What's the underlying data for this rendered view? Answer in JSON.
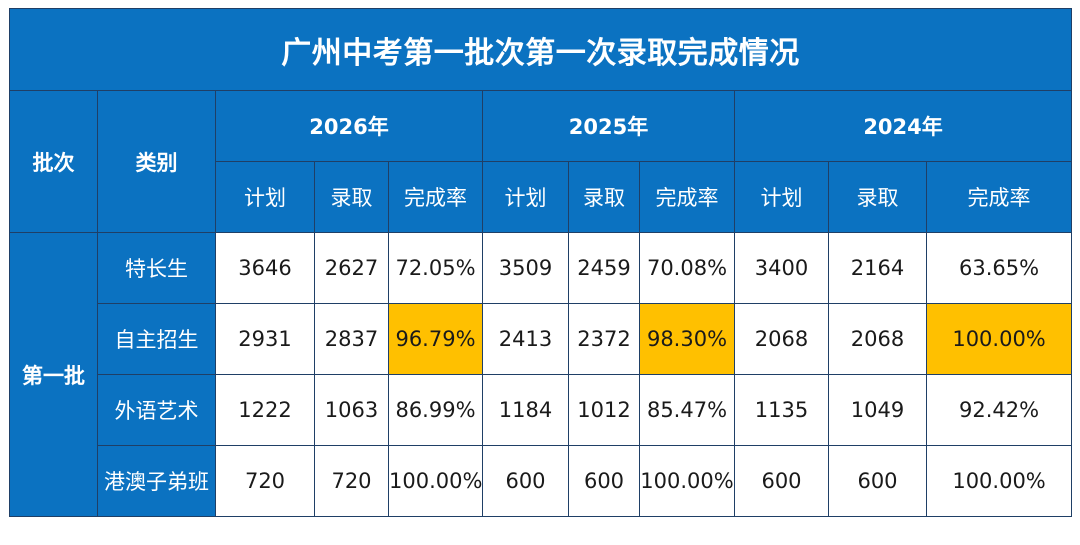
{
  "title": "广州中考第一批次第一次录取完成情况",
  "headers": {
    "batch": "批次",
    "category": "类别",
    "years": [
      "2026年",
      "2025年",
      "2024年"
    ],
    "sub": [
      "计划",
      "录取",
      "完成率"
    ]
  },
  "batch_name": "第一批",
  "rows": [
    {
      "category": "特长生",
      "values": [
        "3646",
        "2627",
        "72.05%",
        "3509",
        "2459",
        "70.08%",
        "3400",
        "2164",
        "63.65%"
      ]
    },
    {
      "category": "自主招生",
      "values": [
        "2931",
        "2837",
        "96.79%",
        "2413",
        "2372",
        "98.30%",
        "2068",
        "2068",
        "100.00%"
      ]
    },
    {
      "category": "外语艺术",
      "values": [
        "1222",
        "1063",
        "86.99%",
        "1184",
        "1012",
        "85.47%",
        "1135",
        "1049",
        "92.42%"
      ]
    },
    {
      "category": "港澳子弟班",
      "values": [
        "720",
        "720",
        "100.00%",
        "600",
        "600",
        "100.00%",
        "600",
        "600",
        "100.00%"
      ]
    }
  ],
  "colors": {
    "header_bg": "#0b72c1",
    "highlight": "#ffc000",
    "border": "#1f3f66"
  },
  "highlighted_cells": "自主招生 completion rates for each year"
}
